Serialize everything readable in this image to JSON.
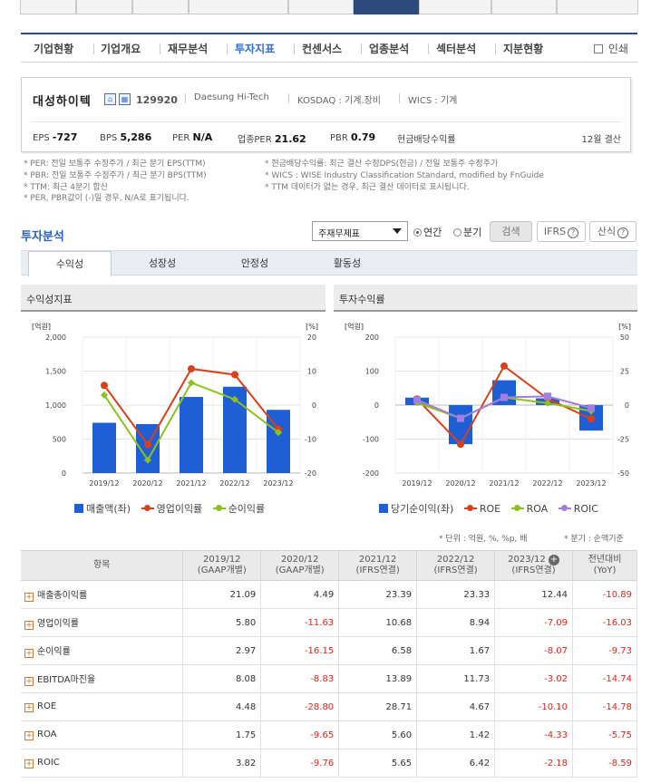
{
  "submenu": {
    "items": [
      "기업현황",
      "기업개요",
      "재무분석",
      "투자지표",
      "컨센서스",
      "업종분석",
      "섹터분석",
      "지분현황"
    ],
    "active": "투자지표",
    "print": "인쇄"
  },
  "company": {
    "name": "대성하이텍",
    "code": "129920",
    "eng_name": "Daesung Hi-Tech",
    "market": "KOSDAQ : 기계.장비",
    "wics": "WICS : 기계",
    "eps_label": "EPS",
    "eps": "-727",
    "bps_label": "BPS",
    "bps": "5,286",
    "per_label": "PER",
    "per": "N/A",
    "ind_per_label": "업종PER",
    "ind_per": "21.62",
    "pbr_label": "PBR",
    "pbr": "0.79",
    "dividend_label": "현금배당수익률",
    "settlement": "12월 결산"
  },
  "notes_left": [
    "* PER: 전일 보통주 수정주가 / 최근 분기 EPS(TTM)",
    "* PBR: 전일 보통주 수정주가 / 최근 분기 BPS(TTM)",
    "* TTM: 최근 4분기 합산",
    "* PER, PBR값이 (-)일 경우, N/A로 표기됩니다."
  ],
  "notes_right": [
    "* 현금배당수익률: 최근 결산 수정DPS(현금) / 전일 보통주 수정주가",
    "* WICS : WISE Industry Classification Standard, modified by FnGuide",
    "* TTM 데이터가 없는 경우, 최근 결산 데이터로 표시됩니다."
  ],
  "analysis": {
    "title": "투자분석",
    "select_value": "주재무제표",
    "radio_annual": "연간",
    "radio_quarter": "분기",
    "search_btn": "검색",
    "ifrs_btn": "IFRS",
    "formula_btn": "산식",
    "tabs": [
      "수익성",
      "성장성",
      "안정성",
      "활동성"
    ]
  },
  "chart_left_title": "수익성지표",
  "chart_right_title": "투자수익률",
  "chart_data": [
    {
      "type": "bar",
      "title": "수익성지표",
      "categories": [
        "2019/12",
        "2020/12",
        "2021/12",
        "2022/12",
        "2023/12"
      ],
      "left_unit": "[억원]",
      "right_unit": "[%]",
      "left_ticks": [
        "2,000",
        "1,500",
        "1,000",
        "500",
        "0"
      ],
      "right_ticks": [
        "20",
        "10",
        "0",
        "-10",
        "-20"
      ],
      "ylim_left": [
        0,
        2000
      ],
      "ylim_right": [
        -20,
        20
      ],
      "series": [
        {
          "name": "매출액(좌)",
          "type": "bar",
          "axis": "left",
          "color": "#1f5fd6",
          "values": [
            740,
            720,
            1120,
            1270,
            930
          ]
        },
        {
          "name": "영업이익률",
          "type": "line",
          "axis": "right",
          "color": "#d9401a",
          "values": [
            5.8,
            -11.63,
            10.68,
            8.94,
            -7.09
          ]
        },
        {
          "name": "순이익률",
          "type": "line",
          "axis": "right",
          "color": "#8cc21c",
          "values": [
            2.97,
            -16.15,
            6.58,
            1.67,
            -8.07
          ]
        }
      ]
    },
    {
      "type": "bar",
      "title": "투자수익률",
      "categories": [
        "2019/12",
        "2020/12",
        "2021/12",
        "2022/12",
        "2023/12"
      ],
      "left_unit": "[억원]",
      "right_unit": "[%]",
      "left_ticks": [
        "200",
        "100",
        "0",
        "-100",
        "-200"
      ],
      "right_ticks": [
        "50",
        "25",
        "0",
        "-25",
        "-50"
      ],
      "ylim_left": [
        -200,
        200
      ],
      "ylim_right": [
        -50,
        50
      ],
      "series": [
        {
          "name": "당기순이익(좌)",
          "type": "bar",
          "axis": "left",
          "color": "#1f5fd6",
          "values": [
            22,
            -115,
            73,
            20,
            -75
          ]
        },
        {
          "name": "ROE",
          "type": "line",
          "axis": "right",
          "color": "#d9401a",
          "values": [
            4.48,
            -28.8,
            28.71,
            4.67,
            -10.1
          ]
        },
        {
          "name": "ROA",
          "type": "line",
          "axis": "right",
          "color": "#8cc21c",
          "values": [
            1.75,
            -9.65,
            5.6,
            1.42,
            -4.33
          ]
        },
        {
          "name": "ROIC",
          "type": "line",
          "axis": "right",
          "color": "#a37de0",
          "values": [
            3.82,
            -9.76,
            5.65,
            6.42,
            -2.18
          ]
        }
      ]
    }
  ],
  "unit_note": "* 단위 : 억원, %, %p, 배",
  "period_note": "* 분기 : 순액기준",
  "table": {
    "header_item": "항목",
    "columns": [
      {
        "year": "2019/12",
        "basis": "(GAAP개별)"
      },
      {
        "year": "2020/12",
        "basis": "(GAAP개별)"
      },
      {
        "year": "2021/12",
        "basis": "(IFRS연결)"
      },
      {
        "year": "2022/12",
        "basis": "(IFRS연결)"
      },
      {
        "year": "2023/12",
        "basis": "(IFRS연결)"
      }
    ],
    "yoy_header": "전년대비",
    "yoy_sub": "(YoY)",
    "rows": [
      {
        "label": "매출총이익률",
        "values": [
          "21.09",
          "4.49",
          "23.39",
          "23.33",
          "12.44",
          "-10.89"
        ]
      },
      {
        "label": "영업이익률",
        "values": [
          "5.80",
          "-11.63",
          "10.68",
          "8.94",
          "-7.09",
          "-16.03"
        ]
      },
      {
        "label": "순이익률",
        "values": [
          "2.97",
          "-16.15",
          "6.58",
          "1.67",
          "-8.07",
          "-9.73"
        ]
      },
      {
        "label": "EBITDA마진율",
        "values": [
          "8.08",
          "-8.83",
          "13.89",
          "11.73",
          "-3.02",
          "-14.74"
        ]
      },
      {
        "label": "ROE",
        "values": [
          "4.48",
          "-28.80",
          "28.71",
          "4.67",
          "-10.10",
          "-14.78"
        ]
      },
      {
        "label": "ROA",
        "values": [
          "1.75",
          "-9.65",
          "5.60",
          "1.42",
          "-4.33",
          "-5.75"
        ]
      },
      {
        "label": "ROIC",
        "values": [
          "3.82",
          "-9.76",
          "5.65",
          "6.42",
          "-2.18",
          "-8.59"
        ]
      }
    ]
  }
}
